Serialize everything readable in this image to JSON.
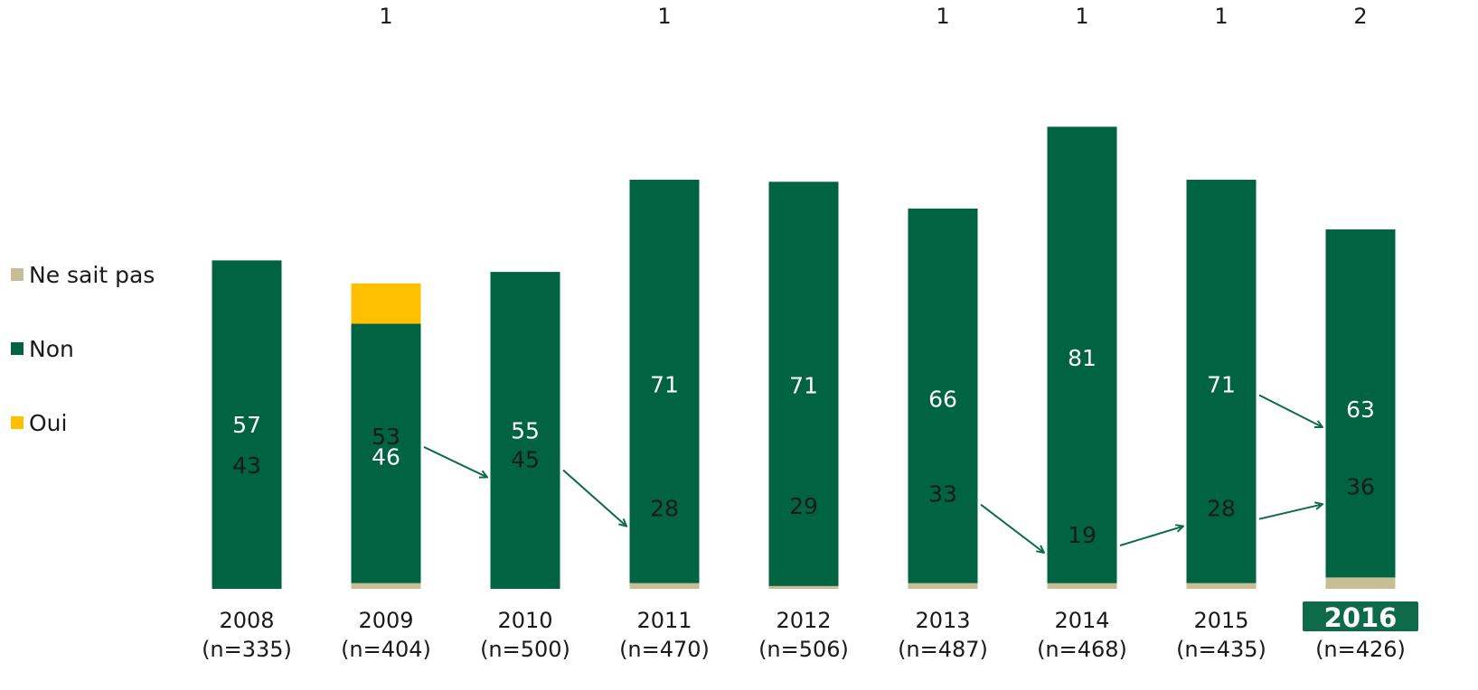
{
  "chart_data": {
    "type": "bar",
    "stacked": true,
    "categories": [
      "2008",
      "2009",
      "2010",
      "2011",
      "2012",
      "2013",
      "2014",
      "2015",
      "2016"
    ],
    "sample_sizes": [
      "(n=335)",
      "(n=404)",
      "(n=500)",
      "(n=470)",
      "(n=506)",
      "(n=487)",
      "(n=468)",
      "(n=435)",
      "(n=426)"
    ],
    "highlighted_category": "2016",
    "series": [
      {
        "name": "Oui",
        "color": "#FFC000",
        "values": [
          43,
          53,
          45,
          28,
          29,
          33,
          19,
          28,
          36
        ],
        "labels": [
          "43",
          "53",
          "45",
          "28",
          "29",
          "33",
          "19",
          "28",
          "36"
        ]
      },
      {
        "name": "Non",
        "color": "#006341",
        "values": [
          57,
          46,
          55,
          71,
          71,
          66,
          81,
          71,
          63
        ],
        "labels": [
          "57",
          "46",
          "55",
          "71",
          "71",
          "66",
          "81",
          "71",
          "63"
        ]
      },
      {
        "name": "Ne sait pas",
        "color": "#C8BE96",
        "values": [
          0,
          1,
          0,
          1,
          0.5,
          1,
          1,
          1,
          2
        ],
        "labels": [
          "",
          "1",
          "",
          "1",
          "",
          "1",
          "1",
          "1",
          "2"
        ]
      }
    ],
    "ylim": [
      0,
      100
    ],
    "legend_position": "left",
    "trend_arrows": [
      {
        "series": "Oui",
        "from": "2009",
        "to": "2010"
      },
      {
        "series": "Oui",
        "from": "2010",
        "to": "2011"
      },
      {
        "series": "Oui",
        "from": "2013",
        "to": "2014"
      },
      {
        "series": "Oui",
        "from": "2014",
        "to": "2015"
      },
      {
        "series": "Oui",
        "from": "2015",
        "to": "2016"
      },
      {
        "series": "Non",
        "from": "2015",
        "to": "2016"
      }
    ]
  },
  "legend": [
    {
      "label": "Ne sait pas",
      "color": "#C8BE96"
    },
    {
      "label": "Non",
      "color": "#006341"
    },
    {
      "label": "Oui",
      "color": "#FFC000"
    }
  ]
}
